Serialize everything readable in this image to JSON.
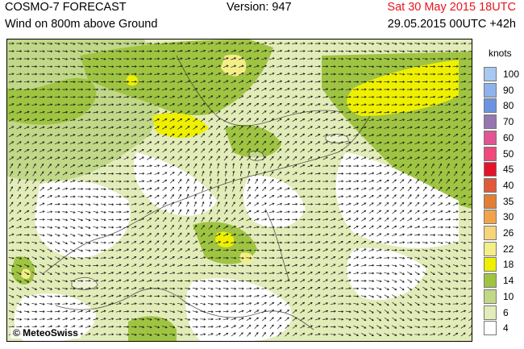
{
  "header": {
    "model": "COSMO-7 FORECAST",
    "version": "Version: 947",
    "valid_time": "Sat 30 May 2015 18UTC",
    "field": "Wind on 800m above Ground",
    "run_time": "29.05.2015 00UTC +42h"
  },
  "legend": {
    "unit": "knots",
    "items": [
      {
        "label": "100",
        "color": "#a9c8f2"
      },
      {
        "label": "90",
        "color": "#8eb3ec"
      },
      {
        "label": "80",
        "color": "#6b93e0"
      },
      {
        "label": "70",
        "color": "#9576b0"
      },
      {
        "label": "60",
        "color": "#e35495"
      },
      {
        "label": "50",
        "color": "#ef4a7b"
      },
      {
        "label": "45",
        "color": "#e5132a"
      },
      {
        "label": "40",
        "color": "#e05a3a"
      },
      {
        "label": "35",
        "color": "#e27f35"
      },
      {
        "label": "30",
        "color": "#f0a34c"
      },
      {
        "label": "26",
        "color": "#f6d47a"
      },
      {
        "label": "22",
        "color": "#f4ee88"
      },
      {
        "label": "18",
        "color": "#eef000"
      },
      {
        "label": "14",
        "color": "#9fc442"
      },
      {
        "label": "10",
        "color": "#c1d888"
      },
      {
        "label": "6",
        "color": "#e2ecb8"
      },
      {
        "label": "4",
        "color": "#ffffff"
      }
    ]
  },
  "map": {
    "copyright": "© MeteoSwiss"
  }
}
